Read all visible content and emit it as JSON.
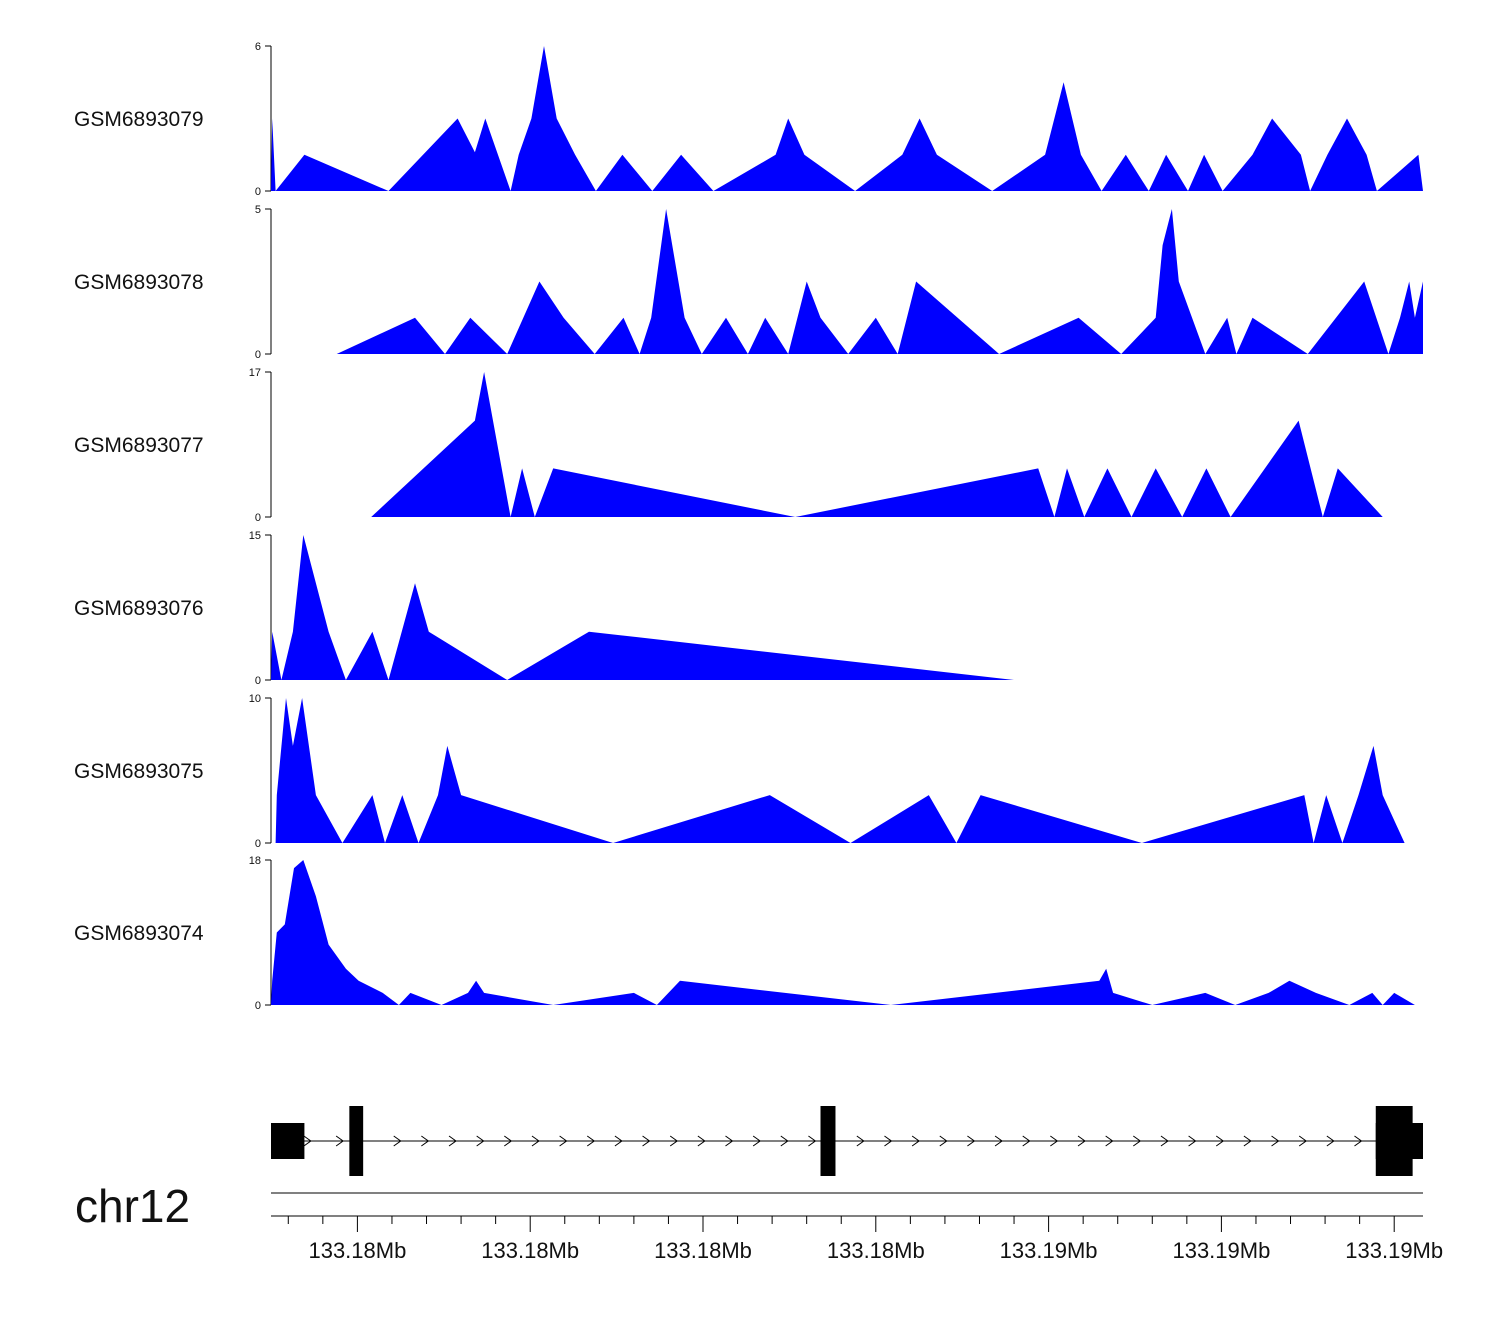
{
  "chart_data": {
    "type": "area",
    "title": "",
    "chromosome": "chr12",
    "x_domain": [
      0,
      1000
    ],
    "fill_color": "#0000ff",
    "x_ticks": [
      "133.18Mb",
      "133.18Mb",
      "133.18Mb",
      "133.18Mb",
      "133.19Mb",
      "133.19Mb",
      "133.19Mb"
    ],
    "x_tick_positions": [
      75,
      225,
      375,
      525,
      675,
      825,
      975
    ],
    "tracks": [
      {
        "name": "GSM6893079",
        "ymax": 6,
        "ytick_labels": [
          "0",
          "6"
        ],
        "points": [
          [
            0,
            0
          ],
          [
            1,
            3
          ],
          [
            4,
            0
          ],
          [
            29,
            1.5
          ],
          [
            102,
            0
          ],
          [
            162,
            3
          ],
          [
            177,
            1.6
          ],
          [
            186,
            3
          ],
          [
            208,
            0
          ],
          [
            215,
            1.5
          ],
          [
            226,
            3
          ],
          [
            237,
            6
          ],
          [
            248,
            3
          ],
          [
            264,
            1.5
          ],
          [
            282,
            0
          ],
          [
            305,
            1.5
          ],
          [
            331,
            0
          ],
          [
            356,
            1.5
          ],
          [
            384,
            0
          ],
          [
            438,
            1.5
          ],
          [
            449,
            3
          ],
          [
            463,
            1.5
          ],
          [
            507,
            0
          ],
          [
            548,
            1.5
          ],
          [
            563,
            3
          ],
          [
            578,
            1.5
          ],
          [
            626,
            0
          ],
          [
            672,
            1.5
          ],
          [
            688,
            4.5
          ],
          [
            703,
            1.5
          ],
          [
            721,
            0
          ],
          [
            742,
            1.5
          ],
          [
            762,
            0
          ],
          [
            777,
            1.5
          ],
          [
            796,
            0
          ],
          [
            810,
            1.5
          ],
          [
            826,
            0
          ],
          [
            852,
            1.5
          ],
          [
            869,
            3
          ],
          [
            894,
            1.5
          ],
          [
            902,
            0
          ],
          [
            917,
            1.5
          ],
          [
            934,
            3
          ],
          [
            951,
            1.5
          ],
          [
            960,
            0
          ],
          [
            996,
            1.5
          ],
          [
            1000,
            0
          ]
        ]
      },
      {
        "name": "GSM6893078",
        "ymax": 5,
        "ytick_labels": [
          "0",
          "5"
        ],
        "points": [
          [
            57,
            0
          ],
          [
            125,
            1.25
          ],
          [
            151,
            0
          ],
          [
            173,
            1.25
          ],
          [
            205,
            0
          ],
          [
            233,
            2.5
          ],
          [
            254,
            1.25
          ],
          [
            281,
            0
          ],
          [
            306,
            1.25
          ],
          [
            320,
            0
          ],
          [
            330,
            1.25
          ],
          [
            343,
            5
          ],
          [
            359,
            1.25
          ],
          [
            374,
            0
          ],
          [
            395,
            1.25
          ],
          [
            414,
            0
          ],
          [
            429,
            1.25
          ],
          [
            449,
            0
          ],
          [
            465,
            2.5
          ],
          [
            477,
            1.25
          ],
          [
            501,
            0
          ],
          [
            525,
            1.25
          ],
          [
            544,
            0
          ],
          [
            560,
            2.5
          ],
          [
            632,
            0
          ],
          [
            701,
            1.25
          ],
          [
            738,
            0
          ],
          [
            768,
            1.25
          ],
          [
            774,
            3.75
          ],
          [
            782,
            5
          ],
          [
            788,
            2.5
          ],
          [
            811,
            0
          ],
          [
            830,
            1.25
          ],
          [
            838,
            0
          ],
          [
            852,
            1.25
          ],
          [
            900,
            0
          ],
          [
            949,
            2.5
          ],
          [
            970,
            0
          ],
          [
            980,
            1.25
          ],
          [
            988,
            2.5
          ],
          [
            993,
            1.25
          ],
          [
            1000,
            2.5
          ]
        ]
      },
      {
        "name": "GSM6893077",
        "ymax": 17,
        "ytick_labels": [
          "0",
          "17"
        ],
        "points": [
          [
            87,
            0
          ],
          [
            177,
            11.3
          ],
          [
            185,
            17
          ],
          [
            208,
            0
          ],
          [
            218,
            5.7
          ],
          [
            229,
            0
          ],
          [
            245,
            5.7
          ],
          [
            455,
            0
          ],
          [
            666,
            5.7
          ],
          [
            680,
            0
          ],
          [
            691,
            5.7
          ],
          [
            706,
            0
          ],
          [
            726,
            5.7
          ],
          [
            747,
            0
          ],
          [
            768,
            5.7
          ],
          [
            791,
            0
          ],
          [
            812,
            5.7
          ],
          [
            833,
            0
          ],
          [
            892,
            11.3
          ],
          [
            913,
            0
          ],
          [
            926,
            5.7
          ],
          [
            965,
            0
          ]
        ]
      },
      {
        "name": "GSM6893076",
        "ymax": 15,
        "ytick_labels": [
          "0",
          "15"
        ],
        "points": [
          [
            0,
            0
          ],
          [
            1,
            5
          ],
          [
            9,
            0
          ],
          [
            19,
            5
          ],
          [
            28,
            15
          ],
          [
            50,
            5
          ],
          [
            65,
            0
          ],
          [
            88,
            5
          ],
          [
            102,
            0
          ],
          [
            125,
            10
          ],
          [
            137,
            5
          ],
          [
            205,
            0
          ],
          [
            276,
            5
          ],
          [
            645,
            0
          ]
        ]
      },
      {
        "name": "GSM6893075",
        "ymax": 10,
        "ytick_labels": [
          "0",
          "10"
        ],
        "points": [
          [
            4,
            0
          ],
          [
            5,
            3.3
          ],
          [
            13,
            10
          ],
          [
            19,
            6.7
          ],
          [
            27,
            10
          ],
          [
            39,
            3.3
          ],
          [
            62,
            0
          ],
          [
            88,
            3.3
          ],
          [
            99,
            0
          ],
          [
            114,
            3.3
          ],
          [
            128,
            0
          ],
          [
            145,
            3.3
          ],
          [
            153,
            6.7
          ],
          [
            165,
            3.3
          ],
          [
            297,
            0
          ],
          [
            433,
            3.3
          ],
          [
            503,
            0
          ],
          [
            571,
            3.3
          ],
          [
            595,
            0
          ],
          [
            616,
            3.3
          ],
          [
            756,
            0
          ],
          [
            897,
            3.3
          ],
          [
            905,
            0
          ],
          [
            916,
            3.3
          ],
          [
            930,
            0
          ],
          [
            944,
            3.3
          ],
          [
            957,
            6.7
          ],
          [
            965,
            3.3
          ],
          [
            984,
            0
          ]
        ]
      },
      {
        "name": "GSM6893074",
        "ymax": 18,
        "ytick_labels": [
          "0",
          "18"
        ],
        "points": [
          [
            0,
            0
          ],
          [
            1,
            3
          ],
          [
            5,
            9
          ],
          [
            12,
            10
          ],
          [
            20,
            17
          ],
          [
            28,
            18
          ],
          [
            39,
            13.5
          ],
          [
            50,
            7.5
          ],
          [
            65,
            4.5
          ],
          [
            76,
            3
          ],
          [
            97,
            1.5
          ],
          [
            111,
            0
          ],
          [
            121,
            1.5
          ],
          [
            148,
            0
          ],
          [
            171,
            1.5
          ],
          [
            178,
            3
          ],
          [
            185,
            1.5
          ],
          [
            245,
            0
          ],
          [
            315,
            1.5
          ],
          [
            335,
            0
          ],
          [
            355,
            3
          ],
          [
            538,
            0
          ],
          [
            719,
            3
          ],
          [
            725,
            4.5
          ],
          [
            731,
            1.5
          ],
          [
            765,
            0
          ],
          [
            811,
            1.5
          ],
          [
            837,
            0
          ],
          [
            866,
            1.5
          ],
          [
            884,
            3
          ],
          [
            907,
            1.5
          ],
          [
            936,
            0
          ],
          [
            956,
            1.5
          ],
          [
            965,
            0
          ],
          [
            975,
            1.5
          ],
          [
            993,
            0
          ]
        ]
      }
    ],
    "gene_model": {
      "exons": [
        {
          "start": 0,
          "end": 29,
          "thickness": "thin"
        },
        {
          "start": 68,
          "end": 80,
          "thickness": "thick"
        },
        {
          "start": 477,
          "end": 490,
          "thickness": "thick"
        },
        {
          "start": 959,
          "end": 991,
          "thickness": "thick"
        },
        {
          "start": 959,
          "end": 1000,
          "thickness": "thin"
        }
      ],
      "intron_arrows": [
        32,
        60,
        110,
        134,
        158,
        182,
        206,
        230,
        254,
        278,
        302,
        326,
        350,
        374,
        398,
        422,
        446,
        470,
        512,
        536,
        560,
        584,
        608,
        632,
        656,
        680,
        704,
        728,
        752,
        776,
        800,
        824,
        848,
        872,
        896,
        920,
        944
      ]
    }
  }
}
